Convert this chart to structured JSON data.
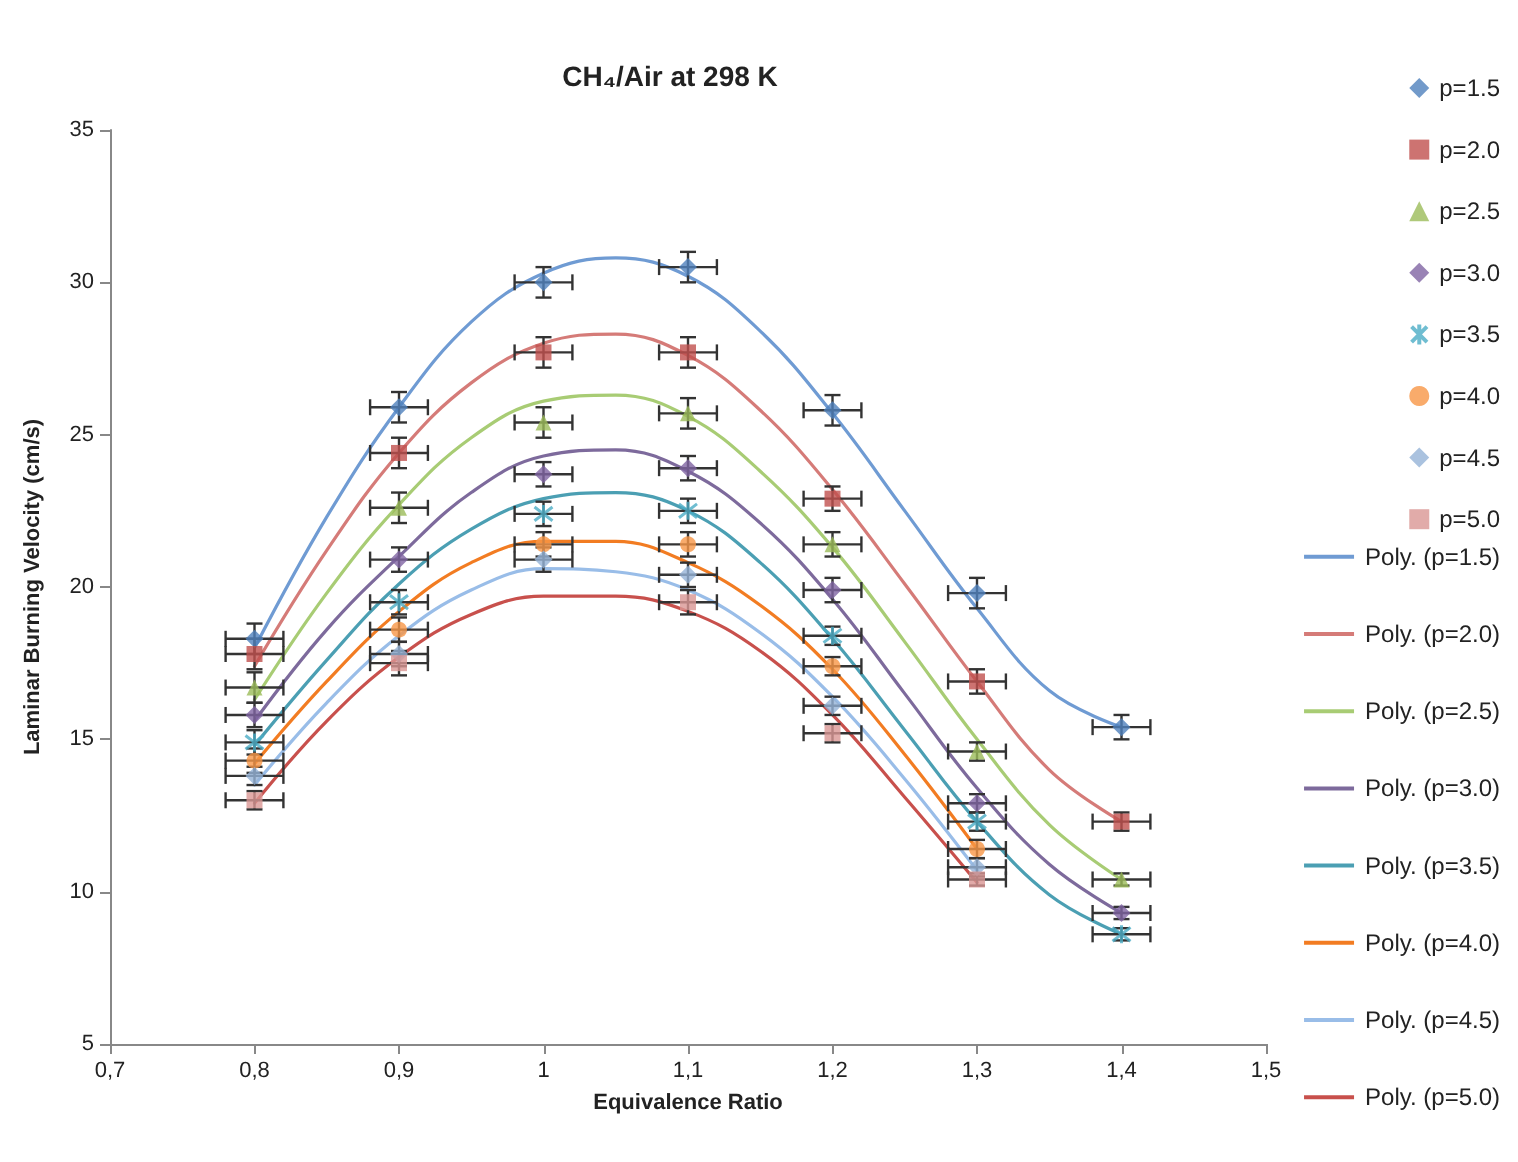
{
  "chart_data": {
    "type": "scatter",
    "title": "CH₄/Air at 298 K",
    "xlabel": "Equivalence Ratio",
    "ylabel": "Laminar Burning Velocity (cm/s)",
    "x": [
      0.8,
      0.9,
      1.0,
      1.1,
      1.2,
      1.3,
      1.4
    ],
    "xlim": [
      0.7,
      1.5
    ],
    "xticks": [
      {
        "value": 0.7,
        "label": "0,7"
      },
      {
        "value": 0.8,
        "label": "0,8"
      },
      {
        "value": 0.9,
        "label": "0,9"
      },
      {
        "value": 1.0,
        "label": "1"
      },
      {
        "value": 1.1,
        "label": "1,1"
      },
      {
        "value": 1.2,
        "label": "1,2"
      },
      {
        "value": 1.3,
        "label": "1,3"
      },
      {
        "value": 1.4,
        "label": "1,4"
      },
      {
        "value": 1.5,
        "label": "1,5"
      }
    ],
    "ylim": [
      5,
      35
    ],
    "yticks": [
      5,
      10,
      15,
      20,
      25,
      30,
      35
    ],
    "grid": false,
    "legend": "right",
    "series": [
      {
        "name": "p=1.5",
        "color": "#4f81bd",
        "marker": "diamond",
        "values": [
          18.3,
          25.9,
          30.0,
          30.5,
          25.8,
          19.8,
          15.4
        ],
        "errors": [
          0.5,
          0.5,
          0.5,
          0.5,
          0.5,
          0.5,
          0.4
        ],
        "xerrors": [
          0.02,
          0.02,
          0.02,
          0.02,
          0.02,
          0.02,
          0.02
        ]
      },
      {
        "name": "p=2.0",
        "color": "#c0504d",
        "marker": "square",
        "values": [
          17.8,
          24.4,
          27.7,
          27.7,
          22.9,
          16.9,
          12.3
        ],
        "errors": [
          0.5,
          0.5,
          0.5,
          0.5,
          0.4,
          0.4,
          0.3
        ],
        "xerrors": [
          0.02,
          0.02,
          0.02,
          0.02,
          0.02,
          0.02,
          0.02
        ]
      },
      {
        "name": "p=2.5",
        "color": "#9bbb59",
        "marker": "triangle",
        "values": [
          16.7,
          22.6,
          25.4,
          25.7,
          21.4,
          14.6,
          10.4
        ],
        "errors": [
          0.5,
          0.5,
          0.5,
          0.5,
          0.4,
          0.3,
          0.2
        ],
        "xerrors": [
          0.02,
          0.02,
          0.02,
          0.02,
          0.02,
          0.02,
          0.02
        ]
      },
      {
        "name": "p=3.0",
        "color": "#8064a2",
        "marker": "diamond",
        "values": [
          15.8,
          20.9,
          23.7,
          23.9,
          19.9,
          12.9,
          9.3
        ],
        "errors": [
          0.4,
          0.4,
          0.4,
          0.4,
          0.4,
          0.3,
          0.2
        ],
        "xerrors": [
          0.02,
          0.02,
          0.02,
          0.02,
          0.02,
          0.02,
          0.02
        ]
      },
      {
        "name": "p=3.5",
        "color": "#4bacc6",
        "marker": "cross",
        "values": [
          14.9,
          19.5,
          22.4,
          22.5,
          18.4,
          12.3,
          8.6
        ],
        "errors": [
          0.4,
          0.4,
          0.4,
          0.4,
          0.3,
          0.3,
          0.2
        ],
        "xerrors": [
          0.02,
          0.02,
          0.02,
          0.02,
          0.02,
          0.02,
          0.02
        ]
      },
      {
        "name": "p=4.0",
        "color": "#f79646",
        "marker": "circle",
        "values": [
          14.3,
          18.6,
          21.4,
          21.4,
          17.4,
          11.4,
          null
        ],
        "errors": [
          0.4,
          0.4,
          0.4,
          0.4,
          0.3,
          0.3,
          null
        ],
        "xerrors": [
          0.02,
          0.02,
          0.02,
          0.02,
          0.02,
          0.02,
          null
        ]
      },
      {
        "name": "p=4.5",
        "color": "#95b3d7",
        "marker": "diamond",
        "values": [
          13.8,
          17.8,
          20.9,
          20.4,
          16.1,
          10.8,
          null
        ],
        "errors": [
          0.3,
          0.4,
          0.4,
          0.4,
          0.3,
          0.3,
          null
        ],
        "xerrors": [
          0.02,
          0.02,
          0.02,
          0.02,
          0.02,
          0.02,
          null
        ]
      },
      {
        "name": "p=5.0",
        "color": "#d99694",
        "marker": "square",
        "values": [
          13.0,
          17.5,
          null,
          19.5,
          15.2,
          10.4,
          null
        ],
        "errors": [
          0.3,
          0.4,
          null,
          0.4,
          0.3,
          0.2,
          null
        ],
        "xerrors": [
          0.02,
          0.02,
          null,
          0.02,
          0.02,
          0.02,
          null
        ]
      },
      {
        "name": "Poly. (p=1.5)",
        "type": "line",
        "marker": "none",
        "color": "#6f9bd3",
        "x": [
          0.8,
          0.85,
          0.9,
          0.95,
          1.0,
          1.05,
          1.1,
          1.15,
          1.2,
          1.25,
          1.3,
          1.35,
          1.4
        ],
        "values": [
          18.0,
          22.3,
          25.9,
          28.7,
          30.3,
          30.8,
          30.2,
          28.4,
          25.7,
          22.5,
          19.3,
          16.6,
          15.4
        ]
      },
      {
        "name": "Poly. (p=2.0)",
        "type": "line",
        "marker": "none",
        "color": "#d57b78",
        "x": [
          0.8,
          0.85,
          0.9,
          0.95,
          1.0,
          1.05,
          1.1,
          1.15,
          1.2,
          1.25,
          1.3,
          1.35,
          1.4
        ],
        "values": [
          17.4,
          21.2,
          24.4,
          26.7,
          28.0,
          28.3,
          27.6,
          25.8,
          23.2,
          20.1,
          16.9,
          14.0,
          12.3
        ]
      },
      {
        "name": "Poly. (p=2.5)",
        "type": "line",
        "marker": "none",
        "color": "#a8cc74",
        "x": [
          0.8,
          0.85,
          0.9,
          0.95,
          1.0,
          1.05,
          1.1,
          1.15,
          1.2,
          1.25,
          1.3,
          1.35,
          1.4
        ],
        "values": [
          16.3,
          19.8,
          22.7,
          24.9,
          26.1,
          26.3,
          25.6,
          23.8,
          21.3,
          18.2,
          15.0,
          12.2,
          10.4
        ]
      },
      {
        "name": "Poly. (p=3.0)",
        "type": "line",
        "marker": "none",
        "color": "#7d6a9c",
        "x": [
          0.8,
          0.85,
          0.9,
          0.95,
          1.0,
          1.05,
          1.1,
          1.15,
          1.2,
          1.25,
          1.3,
          1.35,
          1.4
        ],
        "values": [
          15.6,
          18.6,
          21.0,
          23.1,
          24.3,
          24.5,
          23.8,
          22.1,
          19.6,
          16.5,
          13.4,
          10.9,
          9.3
        ]
      },
      {
        "name": "Poly. (p=3.5)",
        "type": "line",
        "marker": "none",
        "color": "#4b9fb3",
        "x": [
          0.8,
          0.85,
          0.9,
          0.95,
          1.0,
          1.05,
          1.1,
          1.15,
          1.2,
          1.25,
          1.3,
          1.35,
          1.4
        ],
        "values": [
          14.8,
          17.6,
          20.1,
          21.9,
          22.9,
          23.1,
          22.5,
          20.8,
          18.3,
          15.3,
          12.3,
          9.9,
          8.6
        ]
      },
      {
        "name": "Poly. (p=4.0)",
        "type": "line",
        "marker": "none",
        "color": "#f27c22",
        "x": [
          0.8,
          0.85,
          0.9,
          0.95,
          1.0,
          1.05,
          1.1,
          1.15,
          1.2,
          1.25,
          1.3
        ],
        "values": [
          14.2,
          16.9,
          19.2,
          20.8,
          21.5,
          21.5,
          20.8,
          19.4,
          17.3,
          14.5,
          11.4
        ]
      },
      {
        "name": "Poly. (p=4.5)",
        "type": "line",
        "marker": "none",
        "color": "#99bde8",
        "x": [
          0.8,
          0.85,
          0.9,
          0.95,
          1.0,
          1.05,
          1.1,
          1.15,
          1.2,
          1.25,
          1.3
        ],
        "values": [
          13.5,
          16.2,
          18.4,
          19.9,
          20.6,
          20.5,
          19.9,
          18.5,
          16.4,
          13.7,
          10.7
        ]
      },
      {
        "name": "Poly. (p=5.0)",
        "type": "line",
        "marker": "none",
        "color": "#c8504c",
        "x": [
          0.8,
          0.85,
          0.9,
          0.95,
          1.0,
          1.05,
          1.1,
          1.15,
          1.2,
          1.25,
          1.3
        ],
        "values": [
          12.9,
          15.6,
          17.7,
          19.1,
          19.7,
          19.7,
          19.2,
          17.9,
          15.8,
          13.1,
          10.3
        ]
      }
    ]
  }
}
